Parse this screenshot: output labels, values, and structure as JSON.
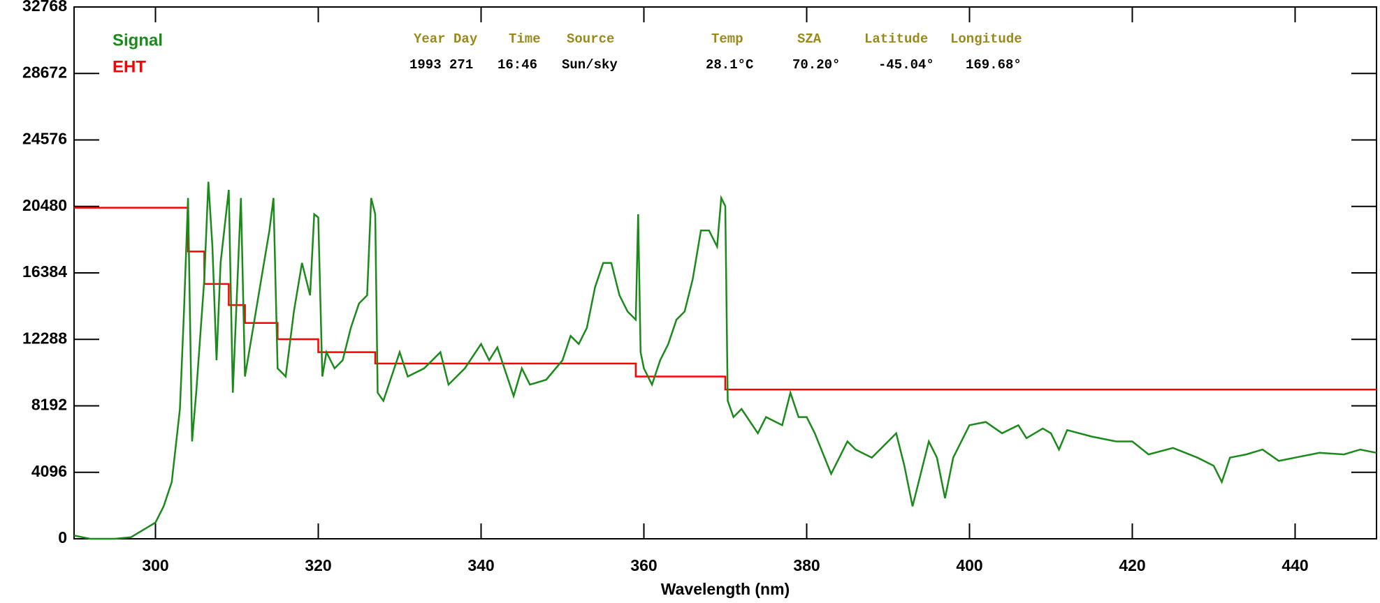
{
  "chart_data": {
    "type": "line",
    "xlabel": "Wavelength (nm)",
    "xlim": [
      290,
      450
    ],
    "ylim": [
      0,
      32768
    ],
    "xticks": [
      300,
      320,
      340,
      360,
      380,
      400,
      420,
      440
    ],
    "yticks": [
      0,
      4096,
      8192,
      12288,
      16384,
      20480,
      24576,
      28672,
      32768
    ],
    "info": {
      "headers": [
        "Year Day",
        "Time",
        "Source",
        "Temp",
        "SZA",
        "Latitude",
        "Longitude"
      ],
      "values": [
        "1993 271",
        "16:46",
        "Sun/sky",
        "28.1°C",
        "70.20°",
        "-45.04°",
        "169.68°"
      ]
    },
    "series": [
      {
        "name": "Signal",
        "color": "#1a8a1a",
        "x": [
          290,
          292,
          295,
          297,
          298,
          299,
          300,
          301,
          302,
          303,
          303.5,
          304,
          304.5,
          305,
          306,
          306.5,
          307,
          307.5,
          308,
          309,
          309.5,
          310,
          310.5,
          311,
          312,
          313,
          314,
          314.5,
          315,
          316,
          317,
          318,
          319,
          319.5,
          320,
          320.5,
          321,
          322,
          323,
          324,
          325,
          326,
          326.5,
          327,
          327.3,
          328,
          330,
          331,
          333,
          335,
          336,
          338,
          340,
          341,
          342,
          344,
          345,
          346,
          348,
          350,
          351,
          352,
          353,
          354,
          355,
          356,
          357,
          358,
          359,
          359.3,
          359.6,
          360,
          361,
          362,
          363,
          364,
          365,
          366,
          367,
          368,
          369,
          369.5,
          370,
          370.3,
          371,
          372,
          374,
          375,
          377,
          378,
          379,
          380,
          381,
          383,
          385,
          386,
          388,
          390,
          391,
          392,
          393,
          395,
          396,
          397,
          398,
          400,
          402,
          404,
          406,
          407,
          409,
          410,
          411,
          412,
          415,
          418,
          420,
          422,
          425,
          428,
          430,
          431,
          432,
          434,
          436,
          438,
          440,
          443,
          446,
          448,
          450
        ],
        "values": [
          200,
          0,
          0,
          100,
          400,
          700,
          1000,
          2000,
          3500,
          8000,
          14000,
          21000,
          6000,
          9000,
          16000,
          22000,
          18000,
          11000,
          17000,
          21500,
          9000,
          15000,
          21000,
          10000,
          13000,
          16000,
          19000,
          21000,
          10500,
          10000,
          14000,
          17000,
          15000,
          20000,
          19800,
          10000,
          11500,
          10500,
          11000,
          13000,
          14500,
          15000,
          21000,
          20000,
          9000,
          8500,
          11500,
          10000,
          10500,
          11500,
          9500,
          10500,
          12000,
          11000,
          11800,
          8800,
          10500,
          9500,
          9800,
          11000,
          12500,
          12000,
          13000,
          15500,
          17000,
          17000,
          15000,
          14000,
          13500,
          20000,
          11500,
          10500,
          9500,
          11000,
          12000,
          13500,
          14000,
          16000,
          19000,
          19000,
          18000,
          21000,
          20500,
          8500,
          7500,
          8000,
          6500,
          7500,
          7000,
          9000,
          7500,
          7500,
          6500,
          4000,
          6000,
          5500,
          5000,
          6000,
          6500,
          4500,
          2000,
          6000,
          5000,
          2500,
          5000,
          7000,
          7200,
          6500,
          7000,
          6200,
          6800,
          6500,
          5500,
          6700,
          6300,
          6000,
          6000,
          5200,
          5600,
          5000,
          4500,
          3500,
          5000,
          5200,
          5500,
          4800,
          5000,
          5300,
          5200,
          5500,
          5300
        ]
      },
      {
        "name": "EHT",
        "color": "#ff0000",
        "x": [
          290,
          304,
          304,
          306,
          306,
          309,
          309,
          311,
          311,
          315,
          315,
          320,
          320,
          327,
          327,
          359,
          359,
          370,
          370,
          450
        ],
        "values": [
          20400,
          20400,
          17700,
          17700,
          15700,
          15700,
          14400,
          14400,
          13300,
          13300,
          12300,
          12300,
          11500,
          11500,
          10800,
          10800,
          10000,
          10000,
          9200,
          9200
        ]
      }
    ]
  }
}
